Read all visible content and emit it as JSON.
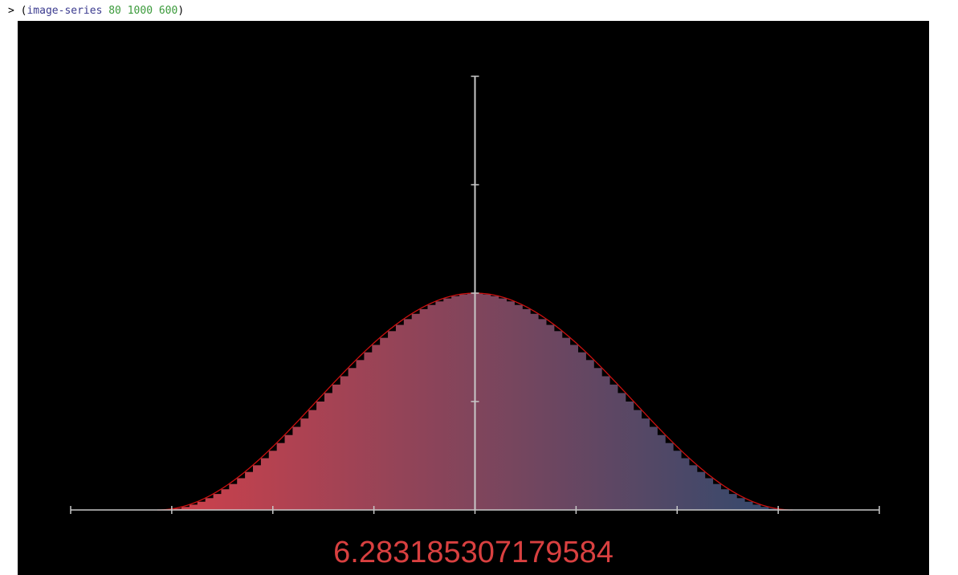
{
  "repl": {
    "prompt": ">",
    "open_paren": "(",
    "function": "image-series",
    "args": [
      "80",
      "1000",
      "600"
    ],
    "close_paren": ")"
  },
  "result": "6.283185307179584",
  "colors": {
    "canvas_bg": "#000000",
    "curve": "#cc1010",
    "axis": "#c8c8c8",
    "gradient_start": "#d2404a",
    "gradient_end": "#2f4a6e",
    "step_bars": "#000000"
  },
  "chart_data": {
    "type": "area",
    "function": "1 + cos(x)",
    "x_domain": [
      -3.14159,
      3.14159
    ],
    "xlim": [
      -4.0,
      4.0
    ],
    "ylim": [
      0,
      4
    ],
    "x_ticks": [
      -4,
      -3,
      -2,
      -1,
      0,
      1,
      2,
      3,
      4
    ],
    "y_ticks": [
      1,
      2,
      3,
      4
    ],
    "steps": 80,
    "area": 6.283185307179584
  }
}
